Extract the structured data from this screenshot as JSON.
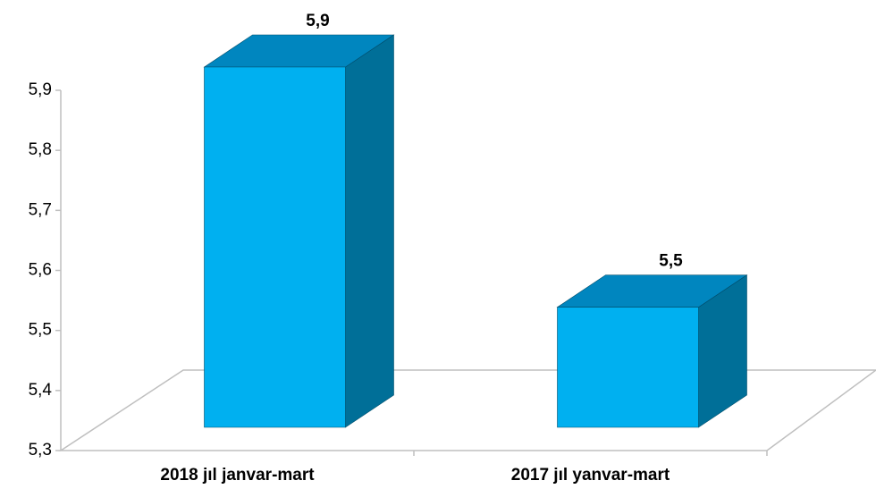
{
  "chart_data": {
    "type": "bar3d",
    "categories": [
      "2018 jıl janvar-mart",
      "2017 jıl yanvar-mart"
    ],
    "values": [
      5.9,
      5.5
    ],
    "value_labels": [
      "5,9",
      "5,5"
    ],
    "color": "#00b0f0",
    "ylim": [
      5.3,
      5.9
    ],
    "yticks": [
      {
        "value": 5.3,
        "label": "5,3"
      },
      {
        "value": 5.4,
        "label": "5,4"
      },
      {
        "value": 5.5,
        "label": "5,5"
      },
      {
        "value": 5.6,
        "label": "5,6"
      },
      {
        "value": 5.7,
        "label": "5,7"
      },
      {
        "value": 5.8,
        "label": "5,8"
      },
      {
        "value": 5.9,
        "label": "5,9"
      }
    ]
  }
}
